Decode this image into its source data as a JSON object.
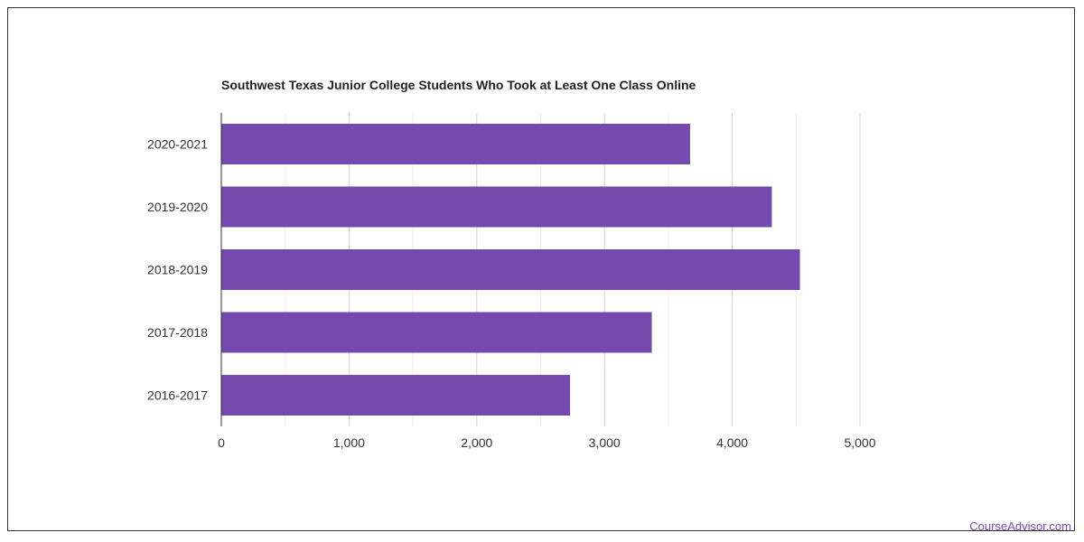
{
  "chart_data": {
    "type": "bar",
    "orientation": "horizontal",
    "title": "Southwest Texas Junior College Students Who Took at Least One Class Online",
    "categories": [
      "2020-2021",
      "2019-2020",
      "2018-2019",
      "2017-2018",
      "2016-2017"
    ],
    "values": [
      3670,
      4310,
      4530,
      3370,
      2730
    ],
    "xlim": [
      0,
      5000
    ],
    "xticks": [
      0,
      1000,
      2000,
      3000,
      4000,
      5000
    ],
    "xtick_labels": [
      "0",
      "1,000",
      "2,000",
      "3,000",
      "4,000",
      "5,000"
    ],
    "grid": true,
    "bar_color": "#7549ad"
  },
  "footer": {
    "source": "CourseAdvisor.com"
  }
}
